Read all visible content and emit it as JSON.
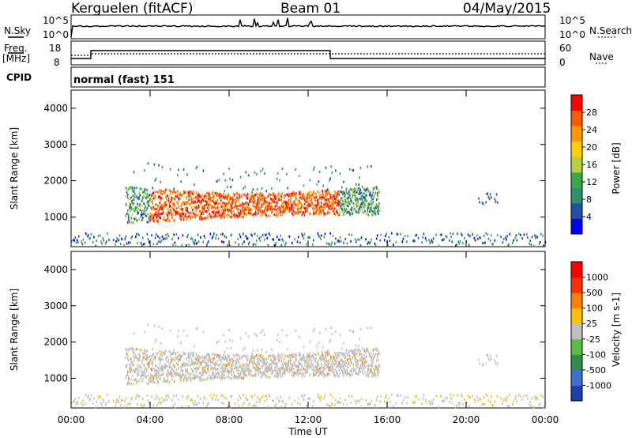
{
  "header": {
    "station": "Kerguelen (fitACF)",
    "beam": "Beam 01",
    "date": "04/May/2015"
  },
  "top_panels": {
    "nsky_label": "N.Sky",
    "nsky_tick_high": "10^5",
    "nsky_tick_low": "10^0",
    "nsearch_label": "N.Search",
    "nsearch_tick_high": "10^5",
    "nsearch_tick_low": "10^0",
    "freq_label": "Freq.",
    "freq_unit": "[MHz]",
    "freq_tick_high": "18",
    "freq_tick_low": "8",
    "nave_label": "Nave",
    "nave_tick_high": "60",
    "nave_tick_low": "0",
    "cpid_label": "CPID",
    "cpid_value": "normal (fast) 151"
  },
  "chart_data": [
    {
      "type": "heatmap",
      "name": "Power",
      "colorbar_label": "Power [dB]",
      "colorbar_ticks": [
        "28",
        "24",
        "20",
        "16",
        "12",
        "8",
        "4"
      ],
      "ylabel": "Slant Range [km]",
      "y_ticks": [
        "4000",
        "3000",
        "2000",
        "1000"
      ],
      "ylim": [
        180,
        4500
      ],
      "xlim": [
        "00:00",
        "24:00"
      ],
      "colors": [
        "#0000ff",
        "#1f4fa8",
        "#2f8f6f",
        "#3aa84a",
        "#b8d040",
        "#ffd000",
        "#ff9900",
        "#ff5a00",
        "#ff0000"
      ]
    },
    {
      "type": "heatmap",
      "name": "Velocity",
      "colorbar_label": "Velocity [m s-1]",
      "colorbar_ticks": [
        "1000",
        "500",
        "100",
        "25",
        "-25",
        "-100",
        "-500",
        "-1000"
      ],
      "ylabel": "Slant Range [km]",
      "y_ticks": [
        "4000",
        "3000",
        "2000",
        "1000"
      ],
      "ylim": [
        180,
        4500
      ],
      "xlim": [
        "00:00",
        "24:00"
      ],
      "colors": [
        "#1e3fb0",
        "#3f6fd0",
        "#2f8f4a",
        "#55c040",
        "#c0c0c0",
        "#ffc000",
        "#ff8000",
        "#ff3000",
        "#ff0000"
      ]
    }
  ],
  "xaxis": {
    "ticks": [
      "00:00",
      "04:00",
      "08:00",
      "12:00",
      "16:00",
      "20:00",
      "00:00"
    ],
    "label": "Time UT"
  }
}
